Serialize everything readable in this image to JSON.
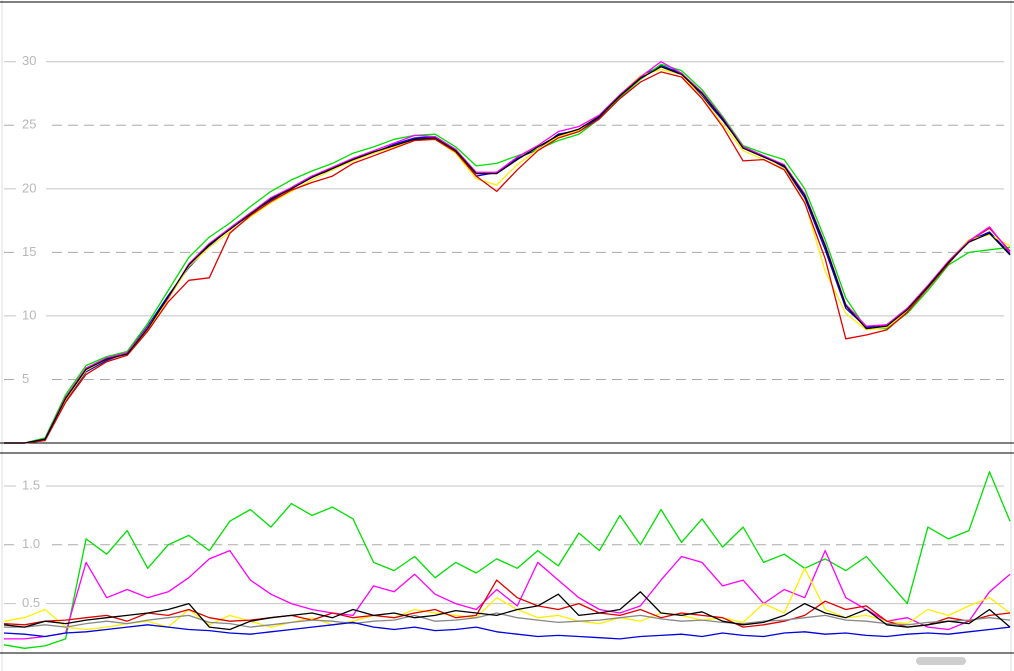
{
  "chart_data": [
    {
      "type": "line",
      "ylim": [
        0,
        34.7
      ],
      "yticks": [
        5,
        10,
        15,
        20,
        25,
        30
      ],
      "series": [
        {
          "color": "#0000dd",
          "values": [
            0,
            0,
            0.2,
            3.3,
            5.6,
            6.5,
            7.1,
            9.2,
            11.6,
            13.8,
            15.5,
            16.9,
            18.1,
            19.1,
            20.1,
            21,
            21.5,
            22.4,
            22.8,
            23.5,
            24,
            24.1,
            23.1,
            21,
            21.3,
            22.4,
            23.1,
            24.3,
            24.6,
            25.6,
            27.4,
            28.8,
            29.7,
            29.1,
            27.3,
            25.4,
            23.3,
            22.6,
            21.7,
            19.3,
            15.2,
            10.6,
            9.1,
            9.3,
            10.6,
            12.2,
            14.3,
            15.9,
            16.6,
            14.9
          ]
        },
        {
          "color": "#00e000",
          "values": [
            0,
            0,
            0.4,
            3.8,
            6.1,
            6.8,
            7.2,
            9.4,
            12,
            14.6,
            16.2,
            17.3,
            18.6,
            19.8,
            20.7,
            21.4,
            22,
            22.8,
            23.3,
            23.9,
            24.2,
            24.3,
            23.3,
            21.8,
            22,
            22.6,
            23.1,
            23.8,
            24.3,
            25.5,
            27.2,
            28.6,
            29.8,
            29.3,
            27.8,
            25.7,
            23.4,
            22.8,
            22.3,
            20,
            16,
            11.4,
            9,
            9,
            10.2,
            12,
            14,
            15,
            15.2,
            15.4
          ]
        },
        {
          "color": "#ffee00",
          "values": [
            0,
            0,
            0.2,
            3.4,
            5.7,
            6.6,
            7,
            8.9,
            11.3,
            13.9,
            15.4,
            16.6,
            17.8,
            18.9,
            19.8,
            20.7,
            21.5,
            22.2,
            22.8,
            23.3,
            23.8,
            23.9,
            22.8,
            20.8,
            20.3,
            21.9,
            23.1,
            24.1,
            24.6,
            25.8,
            27.4,
            28.9,
            29.4,
            29,
            27.2,
            25.1,
            23,
            22.3,
            21.6,
            19,
            13.5,
            10.2,
            8.9,
            9.1,
            10.4,
            12.4,
            14.3,
            16,
            16.4,
            15.5
          ]
        },
        {
          "color": "#e00000",
          "values": [
            0,
            0,
            0.2,
            3.2,
            5.4,
            6.4,
            6.9,
            8.8,
            11.1,
            12.8,
            13,
            16.5,
            17.9,
            19,
            19.9,
            20.5,
            21,
            22,
            22.6,
            23.2,
            23.8,
            23.9,
            22.9,
            21,
            19.8,
            21.5,
            23,
            24,
            24.5,
            25.5,
            27.1,
            28.4,
            29.2,
            28.8,
            27.1,
            24.9,
            22.2,
            22.3,
            21.5,
            18.9,
            14.5,
            8.2,
            8.5,
            8.9,
            10.3,
            12.2,
            14.1,
            15.9,
            16.9,
            15.1
          ]
        },
        {
          "color": "#ff00ff",
          "values": [
            0,
            0,
            0.3,
            3.6,
            5.9,
            6.7,
            7.1,
            9.1,
            11.4,
            14.1,
            15.7,
            16.9,
            18.1,
            19.3,
            20.1,
            21,
            21.7,
            22.4,
            23,
            23.6,
            24.2,
            24.1,
            23.1,
            21.3,
            21.3,
            22.5,
            23.4,
            24.5,
            24.9,
            25.8,
            27.4,
            28.8,
            30,
            29.1,
            27.6,
            25.6,
            23.3,
            22.6,
            21.9,
            19.6,
            15.6,
            10.9,
            9.2,
            9.3,
            10.6,
            12.4,
            14.3,
            15.9,
            17,
            15
          ]
        },
        {
          "color": "#000000",
          "values": [
            0,
            0,
            0.3,
            3.5,
            5.8,
            6.6,
            7,
            9,
            11.5,
            14,
            15.6,
            16.8,
            18,
            19.2,
            20,
            20.9,
            21.6,
            22.3,
            22.9,
            23.4,
            23.9,
            24,
            23,
            21.2,
            21.2,
            22.3,
            23.3,
            24.2,
            24.7,
            25.7,
            27.3,
            28.7,
            29.6,
            29,
            27.5,
            25.5,
            23.2,
            22.5,
            21.8,
            19.5,
            15.5,
            10.8,
            9,
            9.2,
            10.5,
            12.3,
            14.2,
            15.8,
            16.5,
            14.8
          ]
        }
      ]
    },
    {
      "type": "line",
      "ylim": [
        0.08,
        1.78
      ],
      "yticks": [
        0.5,
        {
          "value": 1,
          "label": "1.0"
        },
        1.5
      ],
      "series": [
        {
          "color": "#00e000",
          "values": [
            0.15,
            0.12,
            0.14,
            0.2,
            1.05,
            0.92,
            1.12,
            0.8,
            1.0,
            1.08,
            0.95,
            1.2,
            1.3,
            1.15,
            1.35,
            1.25,
            1.32,
            1.22,
            0.85,
            0.78,
            0.9,
            0.72,
            0.85,
            0.76,
            0.88,
            0.8,
            0.95,
            0.82,
            1.1,
            0.95,
            1.25,
            1.0,
            1.3,
            1.02,
            1.22,
            0.98,
            1.15,
            0.85,
            0.92,
            0.8,
            0.88,
            0.78,
            0.9,
            0.7,
            0.5,
            1.15,
            1.05,
            1.12,
            1.62,
            1.2
          ]
        },
        {
          "color": "#ff00ff",
          "values": [
            0.2,
            0.2,
            0.22,
            0.25,
            0.85,
            0.55,
            0.62,
            0.55,
            0.6,
            0.72,
            0.88,
            0.95,
            0.7,
            0.58,
            0.5,
            0.45,
            0.42,
            0.4,
            0.65,
            0.6,
            0.75,
            0.58,
            0.5,
            0.45,
            0.62,
            0.48,
            0.85,
            0.7,
            0.55,
            0.45,
            0.42,
            0.48,
            0.7,
            0.9,
            0.85,
            0.65,
            0.7,
            0.5,
            0.62,
            0.55,
            0.95,
            0.55,
            0.45,
            0.35,
            0.38,
            0.3,
            0.28,
            0.35,
            0.6,
            0.75
          ]
        },
        {
          "color": "#ffee00",
          "values": [
            0.35,
            0.38,
            0.45,
            0.3,
            0.28,
            0.3,
            0.33,
            0.35,
            0.3,
            0.45,
            0.32,
            0.4,
            0.35,
            0.3,
            0.34,
            0.38,
            0.32,
            0.35,
            0.4,
            0.38,
            0.45,
            0.42,
            0.4,
            0.38,
            0.55,
            0.45,
            0.38,
            0.4,
            0.35,
            0.33,
            0.38,
            0.35,
            0.42,
            0.4,
            0.36,
            0.38,
            0.34,
            0.5,
            0.42,
            0.8,
            0.45,
            0.38,
            0.4,
            0.35,
            0.33,
            0.45,
            0.4,
            0.48,
            0.55,
            0.42
          ]
        },
        {
          "color": "#e00000",
          "values": [
            0.33,
            0.32,
            0.35,
            0.36,
            0.38,
            0.4,
            0.35,
            0.42,
            0.4,
            0.45,
            0.38,
            0.35,
            0.36,
            0.38,
            0.4,
            0.36,
            0.42,
            0.38,
            0.4,
            0.38,
            0.42,
            0.45,
            0.38,
            0.4,
            0.7,
            0.55,
            0.48,
            0.45,
            0.5,
            0.42,
            0.4,
            0.45,
            0.38,
            0.42,
            0.4,
            0.38,
            0.3,
            0.32,
            0.35,
            0.4,
            0.52,
            0.45,
            0.48,
            0.35,
            0.3,
            0.32,
            0.38,
            0.35,
            0.4,
            0.42
          ]
        },
        {
          "color": "#888888",
          "values": [
            0.3,
            0.3,
            0.32,
            0.3,
            0.33,
            0.35,
            0.33,
            0.36,
            0.38,
            0.4,
            0.34,
            0.33,
            0.3,
            0.32,
            0.34,
            0.36,
            0.35,
            0.33,
            0.35,
            0.36,
            0.4,
            0.35,
            0.36,
            0.38,
            0.42,
            0.38,
            0.36,
            0.34,
            0.35,
            0.36,
            0.38,
            0.4,
            0.37,
            0.35,
            0.36,
            0.34,
            0.33,
            0.35,
            0.36,
            0.38,
            0.4,
            0.36,
            0.35,
            0.33,
            0.32,
            0.34,
            0.35,
            0.36,
            0.38,
            0.36
          ]
        },
        {
          "color": "#000000",
          "values": [
            0.32,
            0.3,
            0.35,
            0.33,
            0.36,
            0.38,
            0.4,
            0.42,
            0.45,
            0.5,
            0.3,
            0.28,
            0.35,
            0.38,
            0.4,
            0.42,
            0.38,
            0.45,
            0.4,
            0.42,
            0.38,
            0.4,
            0.44,
            0.42,
            0.4,
            0.45,
            0.48,
            0.58,
            0.4,
            0.42,
            0.45,
            0.6,
            0.42,
            0.4,
            0.43,
            0.35,
            0.32,
            0.34,
            0.4,
            0.5,
            0.42,
            0.38,
            0.45,
            0.32,
            0.3,
            0.32,
            0.35,
            0.33,
            0.45,
            0.3
          ]
        },
        {
          "color": "#0000dd",
          "values": [
            0.25,
            0.24,
            0.22,
            0.25,
            0.26,
            0.28,
            0.3,
            0.32,
            0.3,
            0.28,
            0.27,
            0.25,
            0.24,
            0.26,
            0.28,
            0.3,
            0.32,
            0.34,
            0.3,
            0.28,
            0.3,
            0.27,
            0.28,
            0.3,
            0.26,
            0.24,
            0.22,
            0.23,
            0.22,
            0.21,
            0.2,
            0.22,
            0.23,
            0.24,
            0.22,
            0.25,
            0.23,
            0.22,
            0.25,
            0.26,
            0.24,
            0.25,
            0.23,
            0.22,
            0.24,
            0.25,
            0.24,
            0.26,
            0.28,
            0.3
          ]
        }
      ]
    }
  ]
}
